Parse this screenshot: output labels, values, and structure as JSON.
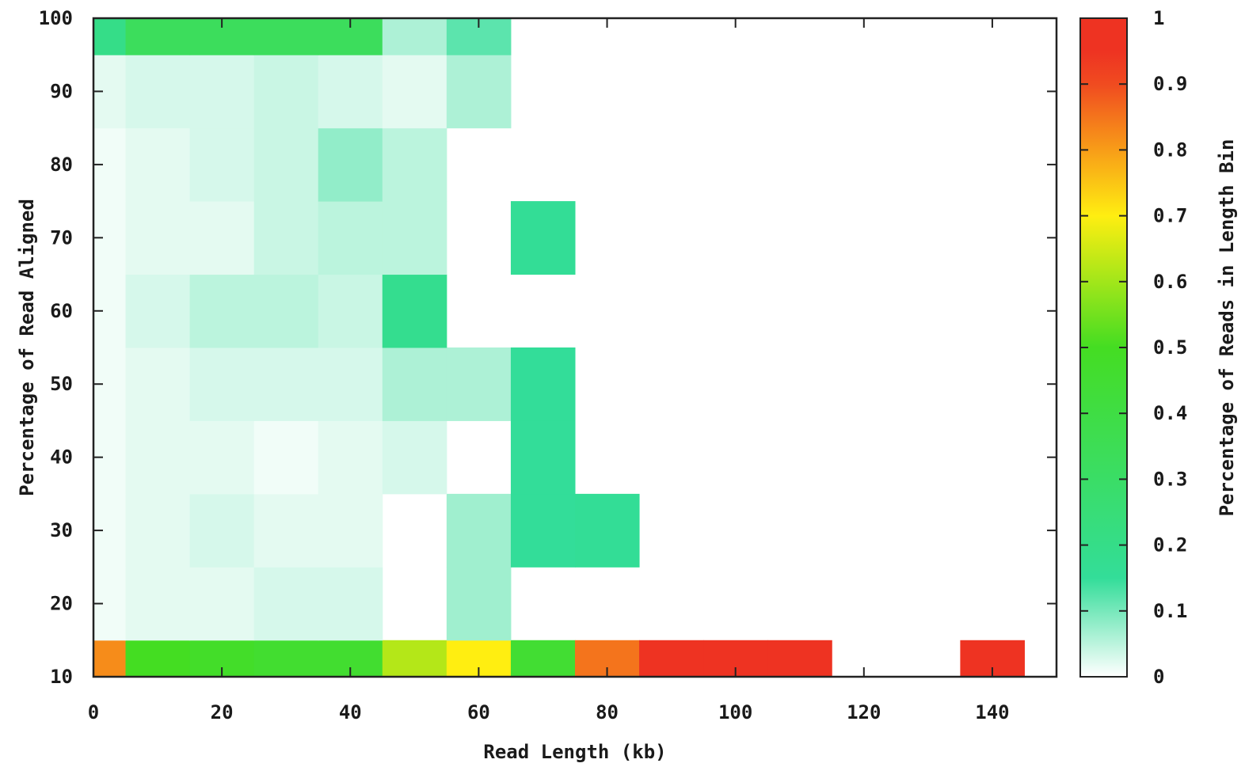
{
  "chart_data": {
    "type": "heatmap",
    "xlabel": "Read Length (kb)",
    "ylabel": "Percentage of Read Aligned",
    "colorbar_label": "Percentage of Reads in Length Bin",
    "xlim": [
      0,
      150
    ],
    "ylim": [
      10,
      100
    ],
    "x_ticks": [
      "0",
      "20",
      "40",
      "60",
      "80",
      "100",
      "120",
      "140"
    ],
    "y_ticks": [
      "10",
      "20",
      "30",
      "40",
      "50",
      "60",
      "70",
      "80",
      "90",
      "100"
    ],
    "colorbar_ticks": [
      "0",
      "0.1",
      "0.2",
      "0.3",
      "0.4",
      "0.5",
      "0.6",
      "0.7",
      "0.8",
      "0.9",
      "1"
    ],
    "colorbar_range": [
      0,
      1
    ],
    "colormap": [
      "#ffffff",
      "#33dd99",
      "#44dd22",
      "#ffee11",
      "#ee3322"
    ],
    "bin_width_kb": 10,
    "bin_height_pct": 10,
    "x_bins": [
      0,
      10,
      20,
      30,
      40,
      50,
      60,
      70,
      80,
      90,
      100,
      110,
      120,
      130,
      140
    ],
    "y_bins": [
      10,
      20,
      30,
      40,
      50,
      60,
      70,
      80,
      90,
      100
    ],
    "cells": [
      [
        0,
        10,
        0.82
      ],
      [
        10,
        10,
        0.5
      ],
      [
        20,
        10,
        0.48
      ],
      [
        30,
        10,
        0.46
      ],
      [
        40,
        10,
        0.46
      ],
      [
        50,
        10,
        0.62
      ],
      [
        60,
        10,
        0.7
      ],
      [
        70,
        10,
        0.45
      ],
      [
        80,
        10,
        0.85
      ],
      [
        90,
        10,
        0.97
      ],
      [
        100,
        10,
        0.97
      ],
      [
        110,
        10,
        0.97
      ],
      [
        140,
        10,
        0.98
      ],
      [
        0,
        20,
        0.01
      ],
      [
        10,
        20,
        0.02
      ],
      [
        20,
        20,
        0.02
      ],
      [
        30,
        20,
        0.03
      ],
      [
        40,
        20,
        0.03
      ],
      [
        60,
        20,
        0.07
      ],
      [
        0,
        30,
        0.01
      ],
      [
        10,
        30,
        0.02
      ],
      [
        20,
        30,
        0.03
      ],
      [
        30,
        30,
        0.02
      ],
      [
        40,
        30,
        0.02
      ],
      [
        60,
        30,
        0.07
      ],
      [
        70,
        30,
        0.15
      ],
      [
        80,
        30,
        0.16
      ],
      [
        0,
        40,
        0.01
      ],
      [
        10,
        40,
        0.02
      ],
      [
        20,
        40,
        0.02
      ],
      [
        30,
        40,
        0.01
      ],
      [
        40,
        40,
        0.02
      ],
      [
        50,
        40,
        0.03
      ],
      [
        70,
        40,
        0.15
      ],
      [
        0,
        50,
        0.01
      ],
      [
        10,
        50,
        0.02
      ],
      [
        20,
        50,
        0.03
      ],
      [
        30,
        50,
        0.03
      ],
      [
        40,
        50,
        0.03
      ],
      [
        50,
        50,
        0.06
      ],
      [
        60,
        50,
        0.06
      ],
      [
        70,
        50,
        0.15
      ],
      [
        0,
        60,
        0.01
      ],
      [
        10,
        60,
        0.03
      ],
      [
        20,
        60,
        0.05
      ],
      [
        30,
        60,
        0.05
      ],
      [
        40,
        60,
        0.04
      ],
      [
        50,
        60,
        0.18
      ],
      [
        0,
        70,
        0.01
      ],
      [
        10,
        70,
        0.02
      ],
      [
        20,
        70,
        0.02
      ],
      [
        30,
        70,
        0.04
      ],
      [
        40,
        70,
        0.05
      ],
      [
        50,
        70,
        0.05
      ],
      [
        70,
        70,
        0.16
      ],
      [
        0,
        80,
        0.01
      ],
      [
        10,
        80,
        0.02
      ],
      [
        20,
        80,
        0.03
      ],
      [
        30,
        80,
        0.04
      ],
      [
        40,
        80,
        0.08
      ],
      [
        50,
        80,
        0.05
      ],
      [
        0,
        90,
        0.02
      ],
      [
        10,
        90,
        0.03
      ],
      [
        20,
        90,
        0.03
      ],
      [
        30,
        90,
        0.04
      ],
      [
        40,
        90,
        0.03
      ],
      [
        50,
        90,
        0.02
      ],
      [
        60,
        90,
        0.06
      ],
      [
        0,
        100,
        0.2
      ],
      [
        10,
        100,
        0.33
      ],
      [
        20,
        100,
        0.33
      ],
      [
        30,
        100,
        0.33
      ],
      [
        40,
        100,
        0.33
      ],
      [
        50,
        100,
        0.06
      ],
      [
        60,
        100,
        0.12
      ]
    ]
  }
}
